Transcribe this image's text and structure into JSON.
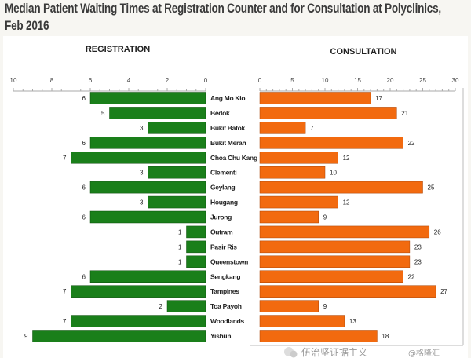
{
  "title": "Median Patient Waiting Times at Registration Counter and for Consultation at Polyclinics, Feb 2016",
  "watermark": "伍治坚证据主义 @格隆汇",
  "chart_data": [
    {
      "type": "bar",
      "orientation": "horizontal",
      "title": "REGISTRATION",
      "direction": "right-to-left",
      "xlim": [
        0,
        10
      ],
      "ticks": [
        0,
        2,
        4,
        6,
        8,
        10
      ],
      "color": "#1a7f1a",
      "categories": [
        "Ang Mo Kio",
        "Bedok",
        "Bukit Batok",
        "Bukit Merah",
        "Choa Chu Kang",
        "Clementi",
        "Geylang",
        "Hougang",
        "Jurong",
        "Outram",
        "Pasir Ris",
        "Queenstown",
        "Sengkang",
        "Tampines",
        "Toa Payoh",
        "Woodlands",
        "Yishun"
      ],
      "values": [
        6,
        5,
        3,
        6,
        7,
        3,
        6,
        3,
        6,
        1,
        1,
        1,
        6,
        7,
        2,
        7,
        9
      ]
    },
    {
      "type": "bar",
      "orientation": "horizontal",
      "title": "CONSULTATION",
      "xlim": [
        0,
        30
      ],
      "ticks": [
        0,
        5,
        10,
        15,
        20,
        25,
        30
      ],
      "color": "#f26a0f",
      "categories": [
        "Ang Mo Kio",
        "Bedok",
        "Bukit Batok",
        "Bukit Merah",
        "Choa Chu Kang",
        "Clementi",
        "Geylang",
        "Hougang",
        "Jurong",
        "Outram",
        "Pasir Ris",
        "Queenstown",
        "Sengkang",
        "Tampines",
        "Toa Payoh",
        "Woodlands",
        "Yishun"
      ],
      "values": [
        17,
        21,
        7,
        22,
        12,
        10,
        25,
        12,
        9,
        26,
        23,
        23,
        22,
        27,
        9,
        13,
        18
      ]
    }
  ]
}
